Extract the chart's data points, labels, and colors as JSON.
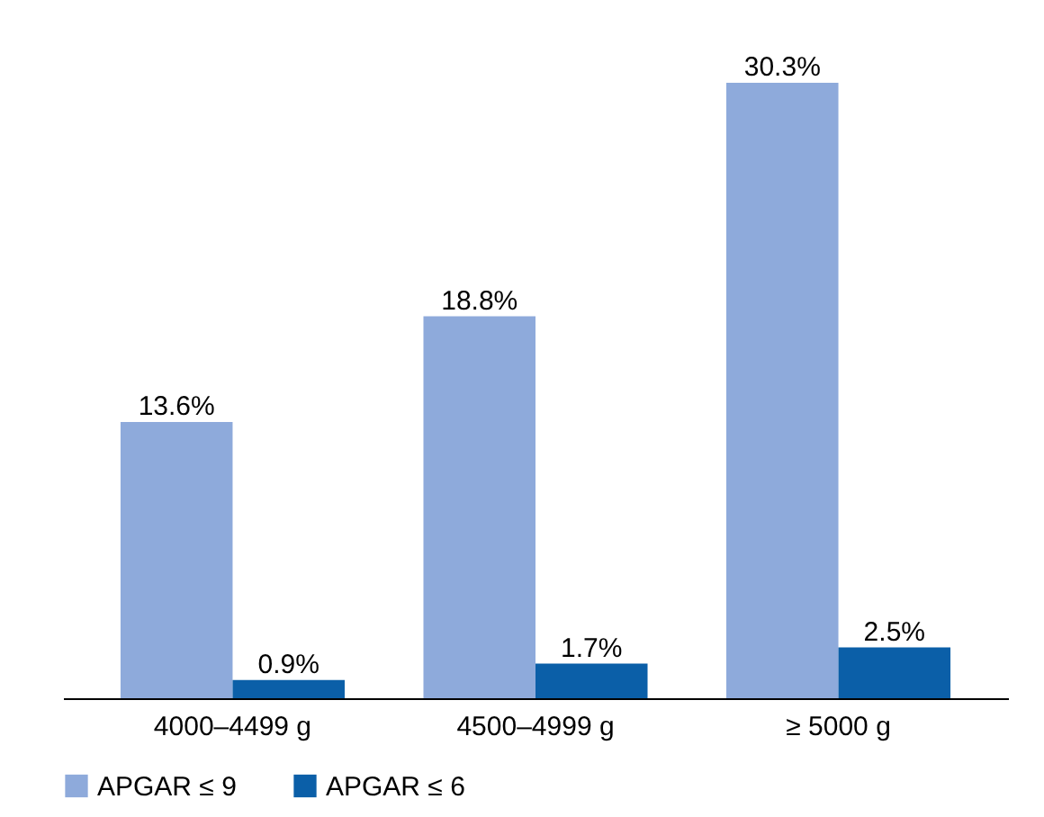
{
  "chart_data": {
    "type": "bar",
    "categories": [
      "4000–4499 g",
      "4500–4999 g",
      "≥ 5000 g"
    ],
    "series": [
      {
        "name": "APGAR ≤ 9",
        "color": "#8eaadb",
        "values": [
          13.6,
          18.8,
          30.3
        ],
        "value_labels": [
          "13.6%",
          "18.8%",
          "30.3%"
        ]
      },
      {
        "name": "APGAR ≤ 6",
        "color": "#0b5fa8",
        "values": [
          0.9,
          1.7,
          2.5
        ],
        "value_labels": [
          "0.9%",
          "1.7%",
          "2.5%"
        ]
      }
    ],
    "legend": "bottom",
    "grid": false
  }
}
